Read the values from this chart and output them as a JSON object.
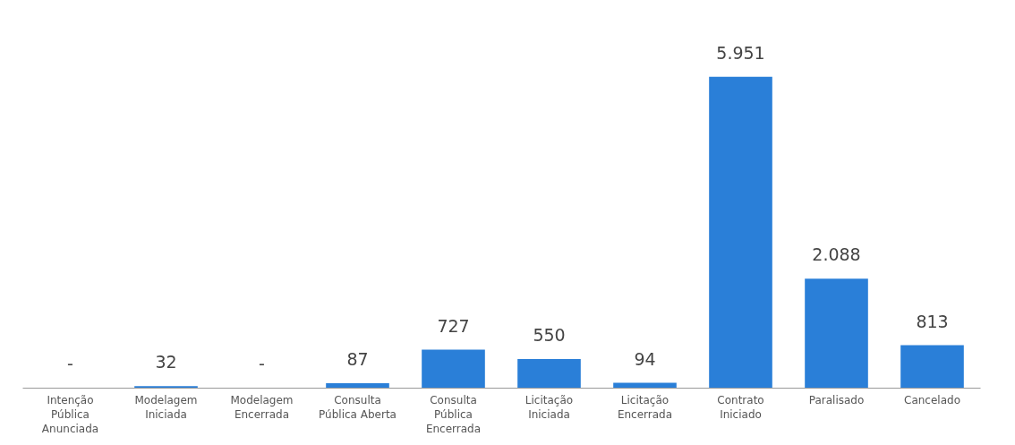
{
  "chart_data": {
    "type": "bar",
    "categories": [
      "Intenção Pública Anunciada",
      "Modelagem Iniciada",
      "Modelagem Encerrada",
      "Consulta Pública Aberta",
      "Consulta Pública Encerrada",
      "Licitação Iniciada",
      "Licitação Encerrada",
      "Contrato Iniciado",
      "Paralisado",
      "Cancelado"
    ],
    "values": [
      0,
      32,
      0,
      87,
      727,
      550,
      94,
      5951,
      2088,
      813
    ],
    "value_labels": [
      "-",
      "32",
      "-",
      "87",
      "727",
      "550",
      "94",
      "5.951",
      "2.088",
      "813"
    ],
    "color": "#2a7fd8"
  }
}
